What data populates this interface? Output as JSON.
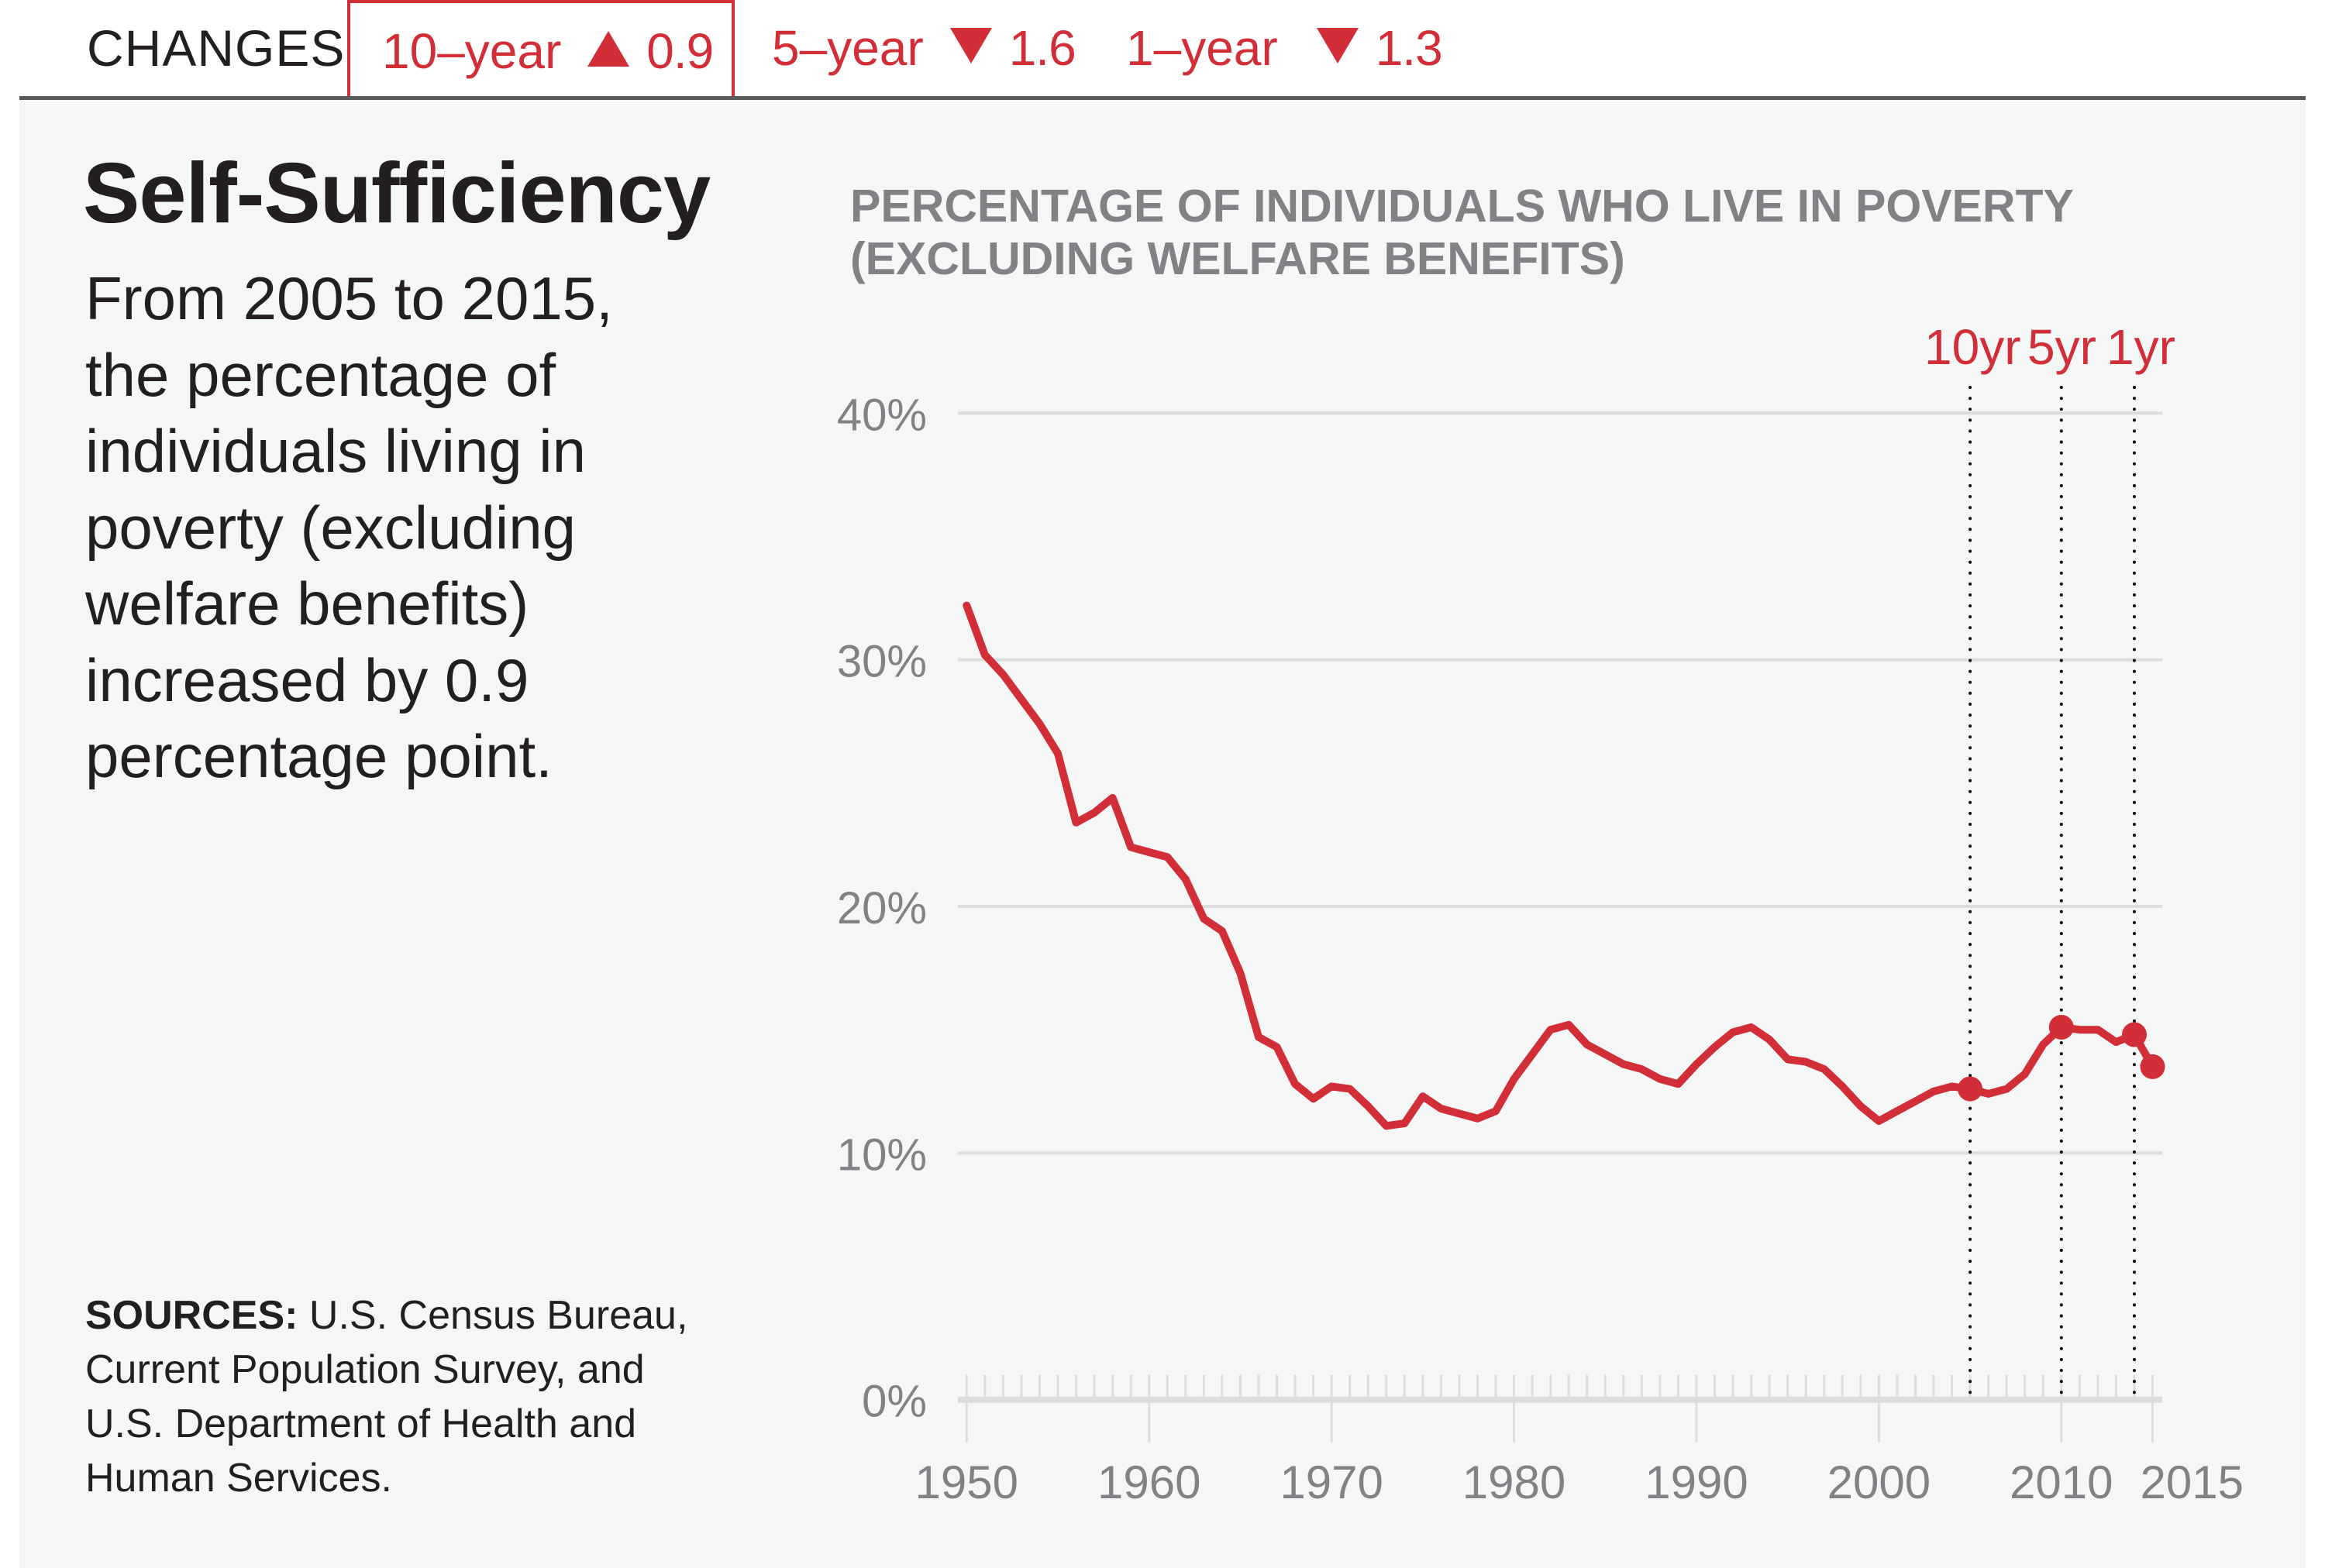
{
  "header": {
    "label": "CHANGES",
    "tabs": [
      {
        "label": "10–year",
        "direction": "up",
        "value": "0.9",
        "active": true
      },
      {
        "label": "5–year",
        "direction": "down",
        "value": "1.6",
        "active": false
      },
      {
        "label": "1–year",
        "direction": "down",
        "value": "1.3",
        "active": false
      }
    ]
  },
  "panel": {
    "title": "Self-Sufficiency",
    "description": "From 2005 to 2015, the percentage of individuals living in poverty (excluding welfare benefits) increased by 0.9 percentage point.",
    "sources_label": "SOURCES:",
    "sources_text": " U.S. Census Bureau, Current Population Survey, and U.S. Department of Health and Human Services."
  },
  "colors": {
    "accent": "#d12e38",
    "text": "#231f20",
    "muted": "#808285",
    "grid": "#dcdddd",
    "panel_bg": "#f5f7f7"
  },
  "chart_data": {
    "type": "line",
    "title": "PERCENTAGE OF INDIVIDUALS WHO LIVE IN POVERTY (EXCLUDING WELFARE BENEFITS)",
    "xlabel": "",
    "ylabel": "",
    "xlim": [
      1950,
      2015
    ],
    "ylim": [
      0,
      40
    ],
    "grid": true,
    "y_ticks": [
      0,
      10,
      20,
      30,
      40
    ],
    "y_tick_labels": [
      "0%",
      "10%",
      "20%",
      "30%",
      "40%"
    ],
    "x_ticks": [
      1950,
      1960,
      1970,
      1980,
      1990,
      2000,
      2010,
      2015
    ],
    "x_tick_labels": [
      "1950",
      "1960",
      "1970",
      "1980",
      "1990",
      "2000",
      "2010",
      "2015"
    ],
    "series": [
      {
        "name": "Poverty rate excluding welfare benefits (%)",
        "x": [
          1950,
          1951,
          1952,
          1953,
          1954,
          1955,
          1956,
          1957,
          1958,
          1959,
          1960,
          1961,
          1962,
          1963,
          1964,
          1965,
          1966,
          1967,
          1968,
          1969,
          1970,
          1971,
          1972,
          1973,
          1974,
          1975,
          1976,
          1977,
          1978,
          1979,
          1980,
          1981,
          1982,
          1983,
          1984,
          1985,
          1986,
          1987,
          1988,
          1989,
          1990,
          1991,
          1992,
          1993,
          1994,
          1995,
          1996,
          1997,
          1998,
          1999,
          2000,
          2001,
          2002,
          2003,
          2004,
          2005,
          2006,
          2007,
          2008,
          2009,
          2010,
          2011,
          2012,
          2013,
          2014,
          2015
        ],
        "values": [
          32.2,
          30.2,
          29.4,
          28.4,
          27.4,
          26.2,
          23.4,
          23.8,
          24.4,
          22.4,
          22.2,
          22.0,
          21.1,
          19.5,
          19.0,
          17.3,
          14.7,
          14.3,
          12.8,
          12.2,
          12.7,
          12.6,
          11.9,
          11.1,
          11.2,
          12.3,
          11.8,
          11.6,
          11.4,
          11.7,
          13.0,
          14.0,
          15.0,
          15.2,
          14.4,
          14.0,
          13.6,
          13.4,
          13.0,
          12.8,
          13.6,
          14.3,
          14.9,
          15.1,
          14.6,
          13.8,
          13.7,
          13.4,
          12.7,
          11.9,
          11.3,
          11.7,
          12.1,
          12.5,
          12.7,
          12.6,
          12.4,
          12.6,
          13.2,
          14.4,
          15.1,
          15.0,
          15.0,
          14.5,
          14.8,
          13.5
        ]
      }
    ],
    "markers": [
      {
        "label": "10yr",
        "year": 2005,
        "value": 12.6
      },
      {
        "label": "5yr",
        "year": 2010,
        "value": 15.1
      },
      {
        "label": "1yr",
        "year": 2014,
        "value": 14.8
      },
      {
        "label": "",
        "year": 2015,
        "value": 13.5
      }
    ],
    "legend": "none"
  }
}
